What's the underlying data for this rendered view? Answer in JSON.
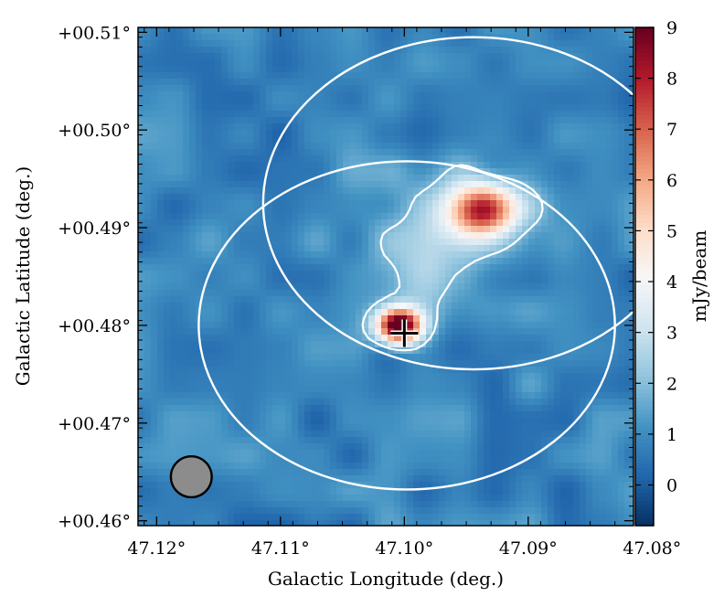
{
  "chart_data": {
    "type": "heatmap",
    "title": "",
    "xlabel": "Galactic Longitude (deg.)",
    "ylabel": "Galactic Latitude (deg.)",
    "xlim": [
      47.1215,
      47.0815
    ],
    "ylim": [
      0.4595,
      0.5105
    ],
    "x_ticks": [
      {
        "value": 47.12,
        "label": "47.12°"
      },
      {
        "value": 47.11,
        "label": "47.11°"
      },
      {
        "value": 47.1,
        "label": "47.10°"
      },
      {
        "value": 47.09,
        "label": "47.09°"
      },
      {
        "value": 47.08,
        "label": "47.08°"
      }
    ],
    "y_ticks": [
      {
        "value": 0.46,
        "label": "+00.46°"
      },
      {
        "value": 0.47,
        "label": "+00.47°"
      },
      {
        "value": 0.48,
        "label": "+00.48°"
      },
      {
        "value": 0.49,
        "label": "+00.49°"
      },
      {
        "value": 0.5,
        "label": "+00.50°"
      },
      {
        "value": 0.51,
        "label": "+00.51°"
      }
    ],
    "colorbar": {
      "label": "mJy/beam",
      "range": [
        -0.8,
        9.0
      ],
      "ticks": [
        0,
        1,
        2,
        3,
        4,
        5,
        6,
        7,
        8,
        9
      ],
      "colormap": "RdBu_r"
    },
    "background_level": 0.8,
    "sources": [
      {
        "name": "",
        "l": 47.1006,
        "b": 0.48,
        "peak": 9.2,
        "sigma_deg": 0.0013
      },
      {
        "name": "",
        "l": 47.094,
        "b": 0.4918,
        "peak": 5.8,
        "sigma_deg": 0.0019
      }
    ],
    "extended_emission": [
      {
        "l": 47.096,
        "b": 0.4905,
        "peak": 1.6,
        "sigma_deg": 0.0045
      },
      {
        "l": 47.0985,
        "b": 0.4845,
        "peak": 0.9,
        "sigma_deg": 0.003
      }
    ],
    "circles": [
      {
        "l_center": 47.0944,
        "b_center": 0.4925,
        "radius_deg": 0.017
      },
      {
        "l_center": 47.0998,
        "b_center": 0.48,
        "radius_deg": 0.0168
      }
    ],
    "cross_marker": {
      "l": 47.1,
      "b": 0.4792
    },
    "beam": {
      "l": 47.1172,
      "b": 0.4645,
      "diameter_deg": 0.0033
    },
    "contour_level": 1.9,
    "grid": false
  }
}
